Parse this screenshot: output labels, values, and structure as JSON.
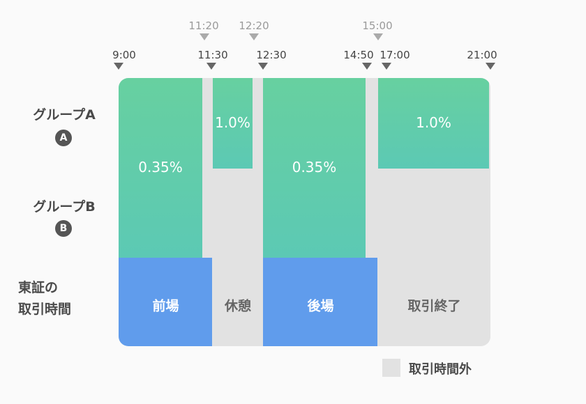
{
  "chart_data": {
    "type": "timeline",
    "time_axis": {
      "start": "9:00",
      "end": "21:00"
    },
    "lower_ticks": [
      "9:00",
      "11:30",
      "12:30",
      "14:50",
      "17:00",
      "21:00"
    ],
    "upper_ticks": [
      "11:20",
      "12:20",
      "15:00"
    ],
    "rows": [
      {
        "name": "グループA",
        "badge": "A"
      },
      {
        "name": "グループB",
        "badge": "B"
      }
    ],
    "fee_blocks": [
      {
        "start": "9:00",
        "end": "11:20",
        "groups": [
          "A",
          "B"
        ],
        "label": "0.35%"
      },
      {
        "start": "11:30",
        "end": "12:20",
        "groups": [
          "A"
        ],
        "label": "1.0%"
      },
      {
        "start": "12:30",
        "end": "14:50",
        "groups": [
          "A",
          "B"
        ],
        "label": "0.35%"
      },
      {
        "start": "15:00",
        "end": "21:00",
        "groups": [
          "A"
        ],
        "label": "1.0%"
      }
    ],
    "tse_row_label": [
      "東証の",
      "取引時間"
    ],
    "tse_sessions": [
      {
        "start": "9:00",
        "end": "11:30",
        "label": "前場",
        "active": true
      },
      {
        "start": "11:30",
        "end": "12:30",
        "label": "休憩",
        "active": false
      },
      {
        "start": "12:30",
        "end": "15:00",
        "label": "後場",
        "active": true
      },
      {
        "start": "15:00",
        "end": "21:00",
        "label": "取引終了",
        "active": false
      }
    ],
    "legend": {
      "label": "取引時間外",
      "color": "#e2e2e2"
    }
  },
  "colors": {
    "fee_top": "#67d0a0",
    "fee_bottom": "#5cc9b4",
    "session_active": "#609cec",
    "outside_hours": "#e2e2e2"
  }
}
